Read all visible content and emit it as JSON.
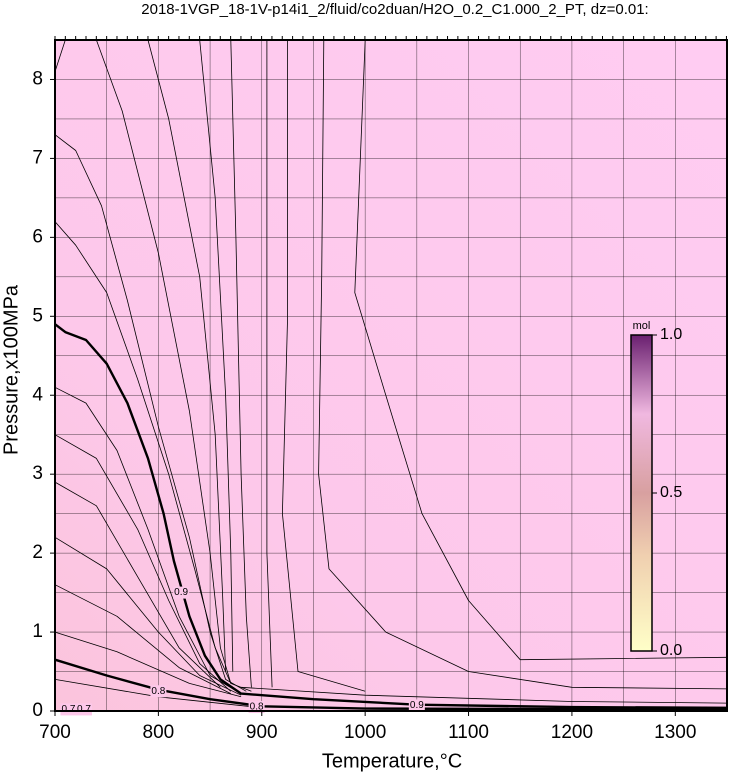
{
  "chart_data": {
    "type": "contour",
    "title": "2018-1VGP_18-1V-p14i1_2/fluid/co2duan/H2O_0.2_C1.000_2_PT, dz=0.01:",
    "x_label": "Temperature,°C",
    "y_label": "Pressure,x100MPa",
    "xlim": [
      700,
      1350
    ],
    "ylim": [
      0,
      8.5
    ],
    "xticks": [
      700,
      800,
      900,
      1000,
      1100,
      1200,
      1300
    ],
    "yticks": [
      0,
      1,
      2,
      3,
      4,
      5,
      6,
      7,
      8
    ],
    "xgrid": [
      700,
      750,
      800,
      850,
      900,
      950,
      1000,
      1050,
      1100,
      1150,
      1200,
      1250,
      1300
    ],
    "ygrid": [
      0,
      0.5,
      1,
      1.5,
      2,
      2.5,
      3,
      3.5,
      4,
      4.5,
      5,
      5.5,
      6,
      6.5,
      7,
      7.5,
      8
    ],
    "grid": true,
    "contours": [
      {
        "x": [
          700,
          710
        ],
        "y": [
          8.1,
          8.5
        ]
      },
      {
        "x": [
          700,
          720,
          745,
          770,
          800,
          830,
          850,
          865,
          885
        ],
        "y": [
          7.3,
          7.1,
          6.4,
          5.2,
          3.6,
          2.2,
          1.0,
          0.4,
          0.25
        ]
      },
      {
        "x": [
          700,
          720,
          750,
          780,
          810,
          835,
          855,
          870,
          890
        ],
        "y": [
          6.2,
          5.9,
          5.3,
          4.2,
          3.0,
          1.8,
          0.8,
          0.35,
          0.25
        ]
      },
      {
        "x": [
          740,
          765,
          800,
          830,
          850,
          860,
          870
        ],
        "y": [
          8.5,
          7.6,
          5.8,
          3.8,
          2.0,
          0.8,
          0.35
        ]
      },
      {
        "x": [
          790,
          810,
          840,
          855,
          862,
          865
        ],
        "y": [
          8.5,
          7.5,
          5.5,
          3.5,
          1.5,
          0.5
        ]
      },
      {
        "x": [
          840,
          855,
          865,
          870,
          872
        ],
        "y": [
          8.5,
          6.5,
          4.0,
          2.0,
          0.5
        ]
      },
      {
        "x": [
          870,
          875,
          880,
          885,
          890
        ],
        "y": [
          8.5,
          6.0,
          3.0,
          1.2,
          0.3
        ]
      },
      {
        "x": [
          905,
          905,
          905,
          910
        ],
        "y": [
          8.5,
          5.0,
          2.0,
          0.3
        ]
      },
      {
        "x": [
          925,
          925,
          920,
          935,
          1000
        ],
        "y": [
          8.5,
          5.0,
          2.5,
          0.5,
          0.25
        ]
      },
      {
        "x": [
          960,
          958,
          955,
          965,
          1020,
          1100,
          1200,
          1350
        ],
        "y": [
          8.5,
          5.5,
          3.0,
          1.8,
          1.0,
          0.5,
          0.3,
          0.28
        ]
      },
      {
        "x": [
          1000,
          990,
          1020,
          1055,
          1100,
          1150,
          1350
        ],
        "y": [
          8.5,
          5.3,
          4.0,
          2.5,
          1.4,
          0.65,
          0.68
        ]
      },
      {
        "x": [
          700,
          730,
          760,
          790,
          820,
          850,
          880
        ],
        "y": [
          4.1,
          3.9,
          3.3,
          2.3,
          1.2,
          0.45,
          0.22
        ]
      },
      {
        "x": [
          700,
          740,
          780,
          810,
          840,
          870
        ],
        "y": [
          3.5,
          3.2,
          2.3,
          1.4,
          0.6,
          0.25
        ]
      },
      {
        "x": [
          700,
          740,
          780,
          820,
          860
        ],
        "y": [
          2.9,
          2.6,
          1.7,
          0.8,
          0.3
        ]
      },
      {
        "x": [
          700,
          750,
          800,
          840,
          880
        ],
        "y": [
          2.2,
          1.8,
          1.0,
          0.45,
          0.2
        ]
      },
      {
        "x": [
          700,
          760,
          820,
          870
        ],
        "y": [
          1.6,
          1.2,
          0.55,
          0.22
        ]
      },
      {
        "x": [
          700,
          760,
          830,
          880
        ],
        "y": [
          1.0,
          0.75,
          0.35,
          0.18
        ]
      },
      {
        "x": [
          700,
          800,
          900
        ],
        "y": [
          0.4,
          0.18,
          0.04
        ]
      },
      {
        "x": [
          880,
          1000,
          1200,
          1350
        ],
        "y": [
          0.3,
          0.2,
          0.12,
          0.1
        ]
      },
      {
        "x": [
          700,
          710,
          730,
          750,
          770,
          790,
          805,
          815,
          830,
          845,
          860,
          880,
          950,
          1050,
          1200,
          1350
        ],
        "y": [
          4.9,
          4.8,
          4.7,
          4.4,
          3.9,
          3.2,
          2.5,
          1.9,
          1.2,
          0.7,
          0.4,
          0.22,
          0.15,
          0.08,
          0.05,
          0.04
        ],
        "bold": true
      },
      {
        "x": [
          700,
          750,
          800,
          850,
          900,
          1000,
          1350
        ],
        "y": [
          0.65,
          0.45,
          0.27,
          0.15,
          0.06,
          0.03,
          0.02
        ],
        "bold": true
      }
    ],
    "contour_labels": [
      {
        "value": 0.9,
        "x": 822,
        "y": 1.5
      },
      {
        "value": 0.8,
        "x": 800,
        "y": 0.25
      },
      {
        "value": 0.8,
        "x": 895,
        "y": 0.05
      },
      {
        "value": 0.9,
        "x": 1050,
        "y": 0.07
      },
      {
        "value": 0.7,
        "x": 713,
        "y": 0.02
      },
      {
        "value": 0.7,
        "x": 728,
        "y": 0.02
      }
    ],
    "colorbar": {
      "label": "mol",
      "clim": [
        0,
        1
      ],
      "ticks": [
        {
          "value": 0,
          "label": "0.0"
        },
        {
          "value": 0.5,
          "label": "0.5"
        },
        {
          "value": 1,
          "label": "1.0"
        }
      ]
    }
  }
}
